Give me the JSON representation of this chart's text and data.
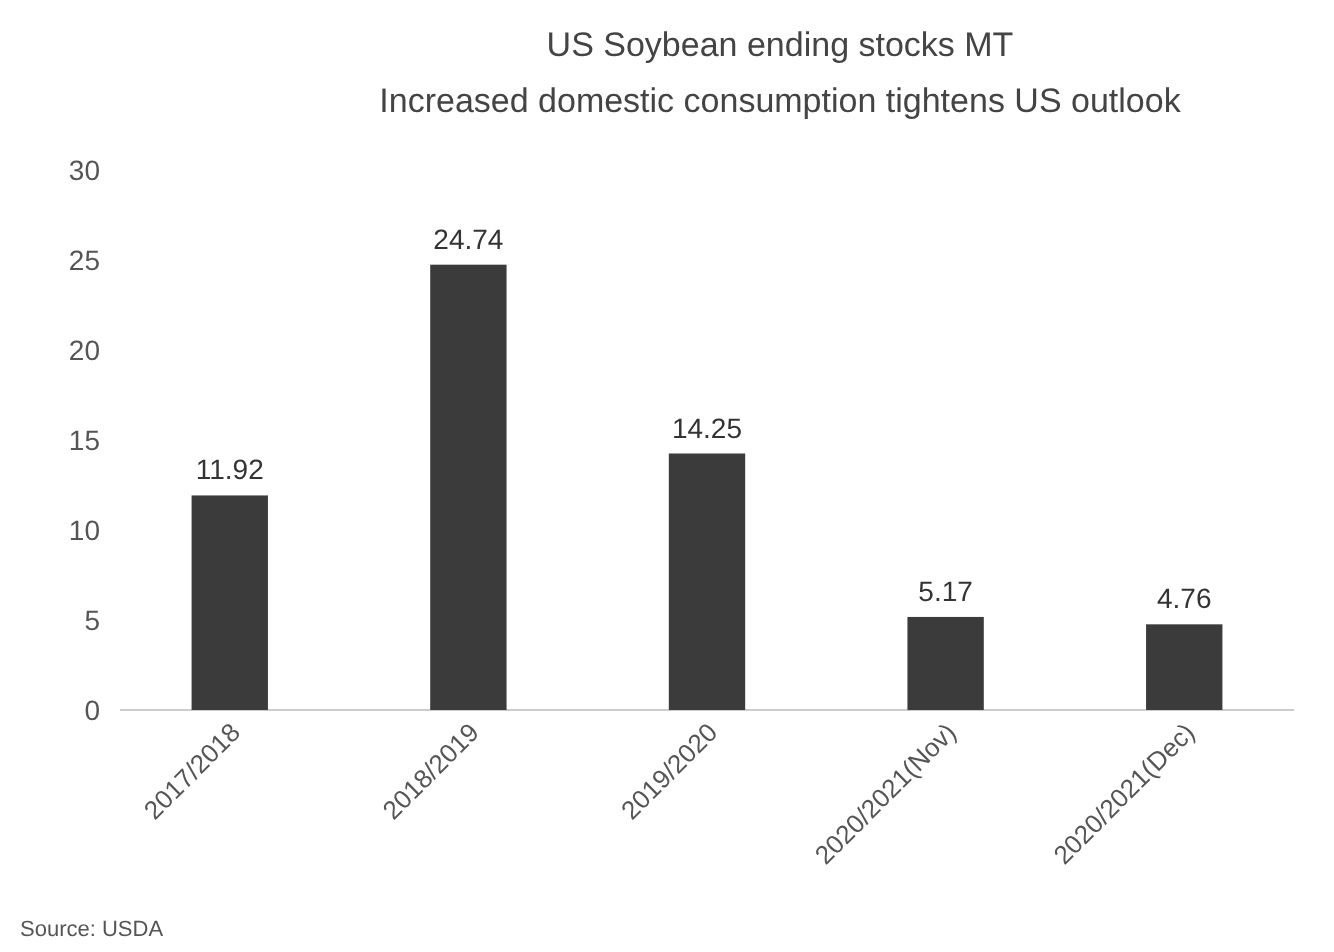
{
  "chart_data": {
    "type": "bar",
    "title": "US Soybean ending stocks MT",
    "subtitle": "Increased domestic consumption tightens US outlook",
    "categories": [
      "2017/2018",
      "2018/2019",
      "2019/2020",
      "2020/2021(Nov)",
      "2020/2021(Dec)"
    ],
    "values": [
      11.92,
      24.74,
      14.25,
      5.17,
      4.76
    ],
    "color": "#3b3b3b",
    "ylim": [
      0,
      30
    ],
    "yticks": [
      0,
      5,
      10,
      15,
      20,
      25,
      30
    ],
    "grid": false,
    "data_labels": true,
    "annotations": [
      "Source: USDA"
    ]
  }
}
